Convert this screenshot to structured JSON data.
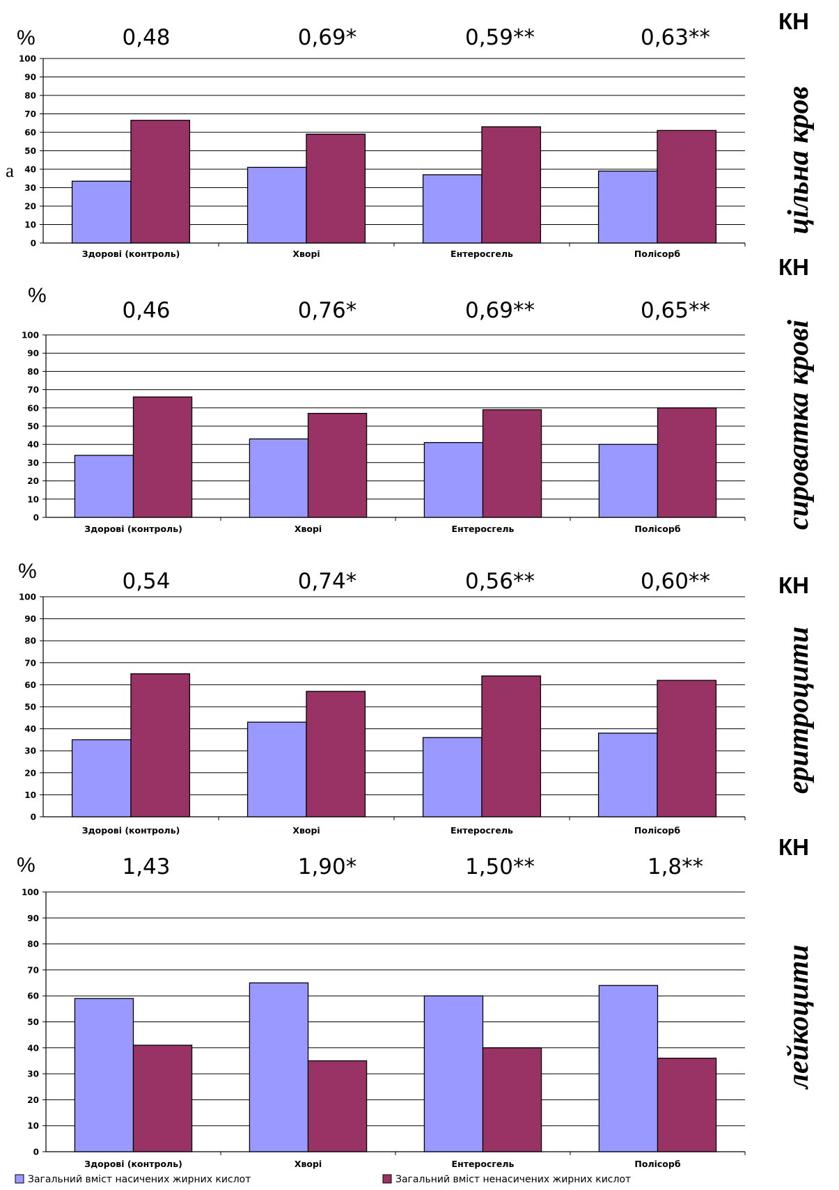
{
  "colors": {
    "saturated": "#9999FF",
    "unsaturated": "#993366",
    "grid": "#000000"
  },
  "legend": {
    "items": [
      {
        "label": "Загальний вміст насичених жирних кислот",
        "color": "#9999FF"
      },
      {
        "label": "Загальний вміст ненасичених жирних кислот",
        "color": "#993366"
      }
    ]
  },
  "chart_data": [
    {
      "type": "bar",
      "side_label": "цільна кров",
      "kn_label": "КН",
      "percent_label": "%",
      "stray_label": "а",
      "ylim": [
        0,
        100
      ],
      "yticks": [
        0,
        10,
        20,
        30,
        40,
        50,
        60,
        70,
        80,
        90,
        100
      ],
      "categories": [
        "Здорові (контроль)",
        "Хворі",
        "Ентеросгель",
        "Полісорб"
      ],
      "kn_values": [
        "0,48",
        "0,69*",
        "0,59**",
        "0,63**"
      ],
      "series": [
        {
          "values": [
            33.5,
            41,
            37,
            39
          ]
        },
        {
          "values": [
            66.5,
            59,
            63,
            61
          ]
        }
      ]
    },
    {
      "type": "bar",
      "side_label": "сироватка крові",
      "kn_label": "КН",
      "percent_label": "%",
      "ylim": [
        0,
        100
      ],
      "yticks": [
        0,
        10,
        20,
        30,
        40,
        50,
        60,
        70,
        80,
        90,
        100
      ],
      "categories": [
        "Здорові (контроль)",
        "Хворі",
        "Ентеросгель",
        "Полісорб"
      ],
      "kn_values": [
        "0,46",
        "0,76*",
        "0,69**",
        "0,65**"
      ],
      "series": [
        {
          "values": [
            34,
            43,
            41,
            40
          ]
        },
        {
          "values": [
            66,
            57,
            59,
            60
          ]
        }
      ]
    },
    {
      "type": "bar",
      "side_label": "еритроцити",
      "kn_label": "КН",
      "percent_label": "%",
      "ylim": [
        0,
        100
      ],
      "yticks": [
        0,
        10,
        20,
        30,
        40,
        50,
        60,
        70,
        80,
        90,
        100
      ],
      "categories": [
        "Здорові (контроль)",
        "Хворі",
        "Ентеросгель",
        "Полісорб"
      ],
      "kn_values": [
        "0,54",
        "0,74*",
        "0,56**",
        "0,60**"
      ],
      "series": [
        {
          "values": [
            35,
            43,
            36,
            38
          ]
        },
        {
          "values": [
            65,
            57,
            64,
            62
          ]
        }
      ]
    },
    {
      "type": "bar",
      "side_label": "лейкоцити",
      "kn_label": "КН",
      "percent_label": "%",
      "ylim": [
        0,
        100
      ],
      "yticks": [
        0,
        10,
        20,
        30,
        40,
        50,
        60,
        70,
        80,
        90,
        100
      ],
      "categories": [
        "Здорові (контроль)",
        "Хворі",
        "Ентеросгель",
        "Полісорб"
      ],
      "kn_values": [
        "1,43",
        "1,90*",
        "1,50**",
        "1,8**"
      ],
      "series": [
        {
          "values": [
            59,
            65,
            60,
            64
          ]
        },
        {
          "values": [
            41,
            35,
            40,
            36
          ]
        }
      ]
    }
  ]
}
